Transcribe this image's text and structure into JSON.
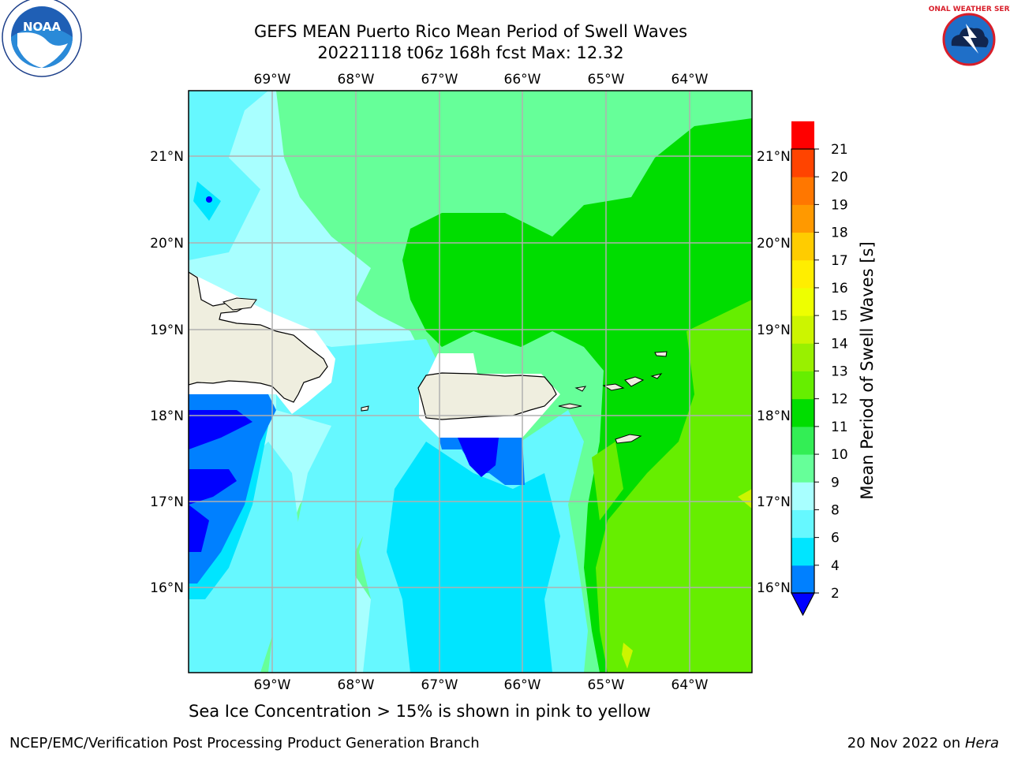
{
  "title": {
    "line1": "GEFS MEAN Puerto Rico Mean Period of Swell Waves",
    "line2": "20221118 t06z 168h fcst   Max: 12.32"
  },
  "map": {
    "lon_labels": [
      "69°W",
      "68°W",
      "67°W",
      "66°W",
      "65°W",
      "64°W"
    ],
    "lat_labels": [
      "21°N",
      "20°N",
      "19°N",
      "18°N",
      "17°N",
      "16°N"
    ]
  },
  "colorbar": {
    "label": "Mean Period of Swell Waves [s]",
    "ticks": [
      "2",
      "4",
      "6",
      "8",
      "9",
      "10",
      "11",
      "12",
      "13",
      "14",
      "15",
      "16",
      "17",
      "18",
      "19",
      "20",
      "21"
    ],
    "colors": [
      "#0000ff",
      "#0080ff",
      "#00e5ff",
      "#66f8ff",
      "#a8ffff",
      "#66ff99",
      "#33ee55",
      "#00dd00",
      "#66ee00",
      "#99f000",
      "#ccf500",
      "#eeff00",
      "#ffee00",
      "#ffcc00",
      "#ff9900",
      "#ff7700",
      "#ff4400",
      "#ff0000"
    ]
  },
  "footer": {
    "note": "Sea Ice Concentration > 15% is shown in pink to yellow",
    "left": "NCEP/EMC/Verification Post Processing Product Generation Branch",
    "right_date": "20 Nov 2022 on ",
    "right_machine": "Hera"
  },
  "logos": {
    "noaa": "NOAA",
    "nws": "NATIONAL WEATHER SERVICE"
  }
}
